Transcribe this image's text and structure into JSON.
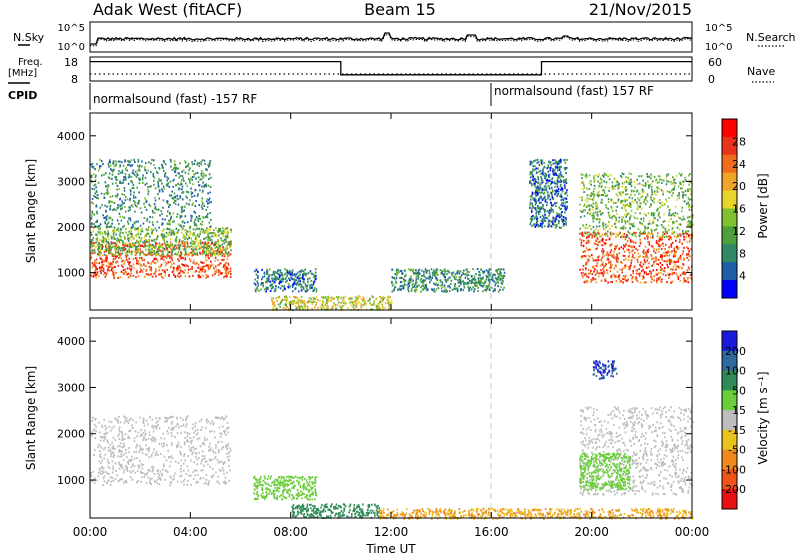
{
  "header": {
    "station": "Adak West (fitACF)",
    "beam": "Beam 15",
    "date": "21/Nov/2015"
  },
  "noise_panel": {
    "left_label": "N.Sky",
    "right_label": "N.Search",
    "left_ticks": [
      "10^5",
      "10^0"
    ],
    "right_ticks": [
      "10^5",
      "10^0"
    ]
  },
  "freq_panel": {
    "left_label_1": "Freq.",
    "left_label_2": "[MHz]",
    "right_label": "Nave",
    "left_ticks": [
      "18",
      "8"
    ],
    "right_ticks": [
      "60",
      "0"
    ],
    "freq_steps": [
      {
        "start_h": 0,
        "end_h": 10,
        "value": 16.5
      },
      {
        "start_h": 10,
        "end_h": 18,
        "value": 11
      },
      {
        "start_h": 18,
        "end_h": 24,
        "value": 16.5
      }
    ]
  },
  "cpid": {
    "label": "CPID",
    "segments": [
      {
        "text": "normalsound (fast) -157 RF",
        "start_h": 0
      },
      {
        "text": "normalsound (fast) 157 RF",
        "start_h": 16
      }
    ]
  },
  "power_panel": {
    "ylabel": "Slant Range [km]",
    "yticks": [
      "4000",
      "3000",
      "2000",
      "1000"
    ],
    "colorbar_label": "Power [dB]",
    "colorbar_ticks": [
      "28",
      "24",
      "20",
      "16",
      "12",
      "8",
      "4"
    ],
    "colors": [
      "#0000ff",
      "#1c5fa8",
      "#2f8a63",
      "#4fa03a",
      "#7fc12f",
      "#e7d52a",
      "#f2a32a",
      "#f06d1e",
      "#e8341a",
      "#ff0000"
    ]
  },
  "velocity_panel": {
    "ylabel": "Slant Range [km]",
    "yticks": [
      "4000",
      "3000",
      "2000",
      "1000"
    ],
    "colorbar_label": "Velocity [m s⁻¹]",
    "colorbar_ticks": [
      "200",
      "100",
      "50",
      "15",
      "-15",
      "-50",
      "-100",
      "-200"
    ],
    "colors": [
      "#1a1adc",
      "#2f6a9e",
      "#2e8b57",
      "#6acd3a",
      "#bdbdbd",
      "#e8c31d",
      "#f08a1c",
      "#f0541a",
      "#e81010"
    ]
  },
  "x_axis": {
    "xlabel": "Time UT",
    "ticks": [
      "00:00",
      "04:00",
      "08:00",
      "12:00",
      "16:00",
      "20:00",
      "00:00"
    ]
  },
  "chart_data": {
    "type": "heatmap",
    "title": "Adak West (fitACF)  Beam 15  21/Nov/2015",
    "xlabel": "Time UT",
    "ylabel": "Slant Range [km]",
    "xlim_hours": [
      0,
      24
    ],
    "ylim_km": [
      180,
      4500
    ],
    "cpid_change_hour": 16,
    "power_regions_dB": [
      {
        "t_start_h": 0.0,
        "t_end_h": 5.6,
        "range_km": [
          900,
          1700
        ],
        "power_db": 26
      },
      {
        "t_start_h": 0.0,
        "t_end_h": 5.6,
        "range_km": [
          1400,
          2000
        ],
        "power_db": 14
      },
      {
        "t_start_h": 0.0,
        "t_end_h": 4.8,
        "range_km": [
          2000,
          3500
        ],
        "power_db": 10
      },
      {
        "t_start_h": 6.5,
        "t_end_h": 9.0,
        "range_km": [
          600,
          1100
        ],
        "power_db": 8
      },
      {
        "t_start_h": 7.2,
        "t_end_h": 12.0,
        "range_km": [
          200,
          500
        ],
        "power_db": 18
      },
      {
        "t_start_h": 12.0,
        "t_end_h": 16.5,
        "range_km": [
          600,
          1100
        ],
        "power_db": 10
      },
      {
        "t_start_h": 17.5,
        "t_end_h": 19.0,
        "range_km": [
          2000,
          3500
        ],
        "power_db": 8
      },
      {
        "t_start_h": 19.5,
        "t_end_h": 24.0,
        "range_km": [
          800,
          1900
        ],
        "power_db": 26
      },
      {
        "t_start_h": 19.5,
        "t_end_h": 24.0,
        "range_km": [
          1800,
          3200
        ],
        "power_db": 14
      }
    ],
    "velocity_regions_ms": [
      {
        "t_start_h": 0.0,
        "t_end_h": 5.6,
        "range_km": [
          900,
          2400
        ],
        "velocity": 0
      },
      {
        "t_start_h": 6.5,
        "t_end_h": 9.0,
        "range_km": [
          600,
          1100
        ],
        "velocity": 30
      },
      {
        "t_start_h": 8.0,
        "t_end_h": 11.5,
        "range_km": [
          200,
          500
        ],
        "velocity": 60
      },
      {
        "t_start_h": 11.5,
        "t_end_h": 24.0,
        "range_km": [
          180,
          400
        ],
        "velocity": -50
      },
      {
        "t_start_h": 19.5,
        "t_end_h": 24.0,
        "range_km": [
          700,
          2600
        ],
        "velocity": 0
      },
      {
        "t_start_h": 19.5,
        "t_end_h": 21.5,
        "range_km": [
          800,
          1600
        ],
        "velocity": 30
      },
      {
        "t_start_h": 20.0,
        "t_end_h": 21.0,
        "range_km": [
          3200,
          3600
        ],
        "velocity": 200
      }
    ]
  }
}
